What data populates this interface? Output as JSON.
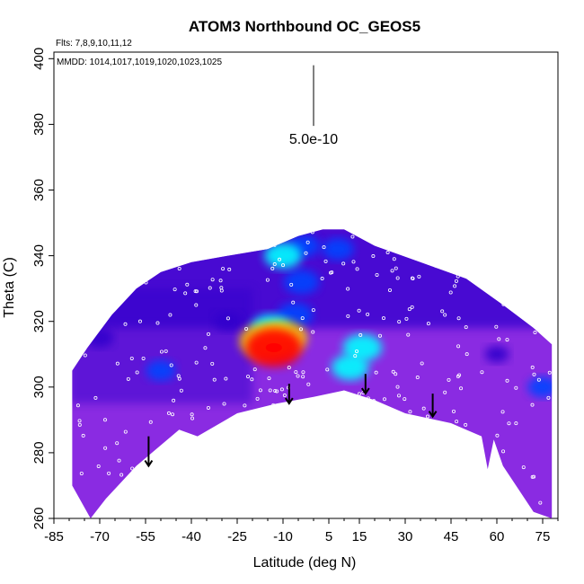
{
  "chart_data": {
    "type": "heatmap",
    "title": "ATOM3 Northbound OC_GEOS5",
    "flights_text": "Flts: 7,8,9,10,11,12",
    "dates_text": "MMDD: 1014,1017,1019,1020,1023,1025",
    "xlabel": "Latitude (deg N)",
    "ylabel": "Theta (C)",
    "xlim": [
      -85,
      80
    ],
    "ylim": [
      260,
      402
    ],
    "xtick_labels": [
      "-85",
      "-70",
      "-55",
      "-40",
      "-25",
      "-10",
      "5",
      "15",
      "30",
      "45",
      "60",
      "75"
    ],
    "xtick_values": [
      -85,
      -70,
      -55,
      -40,
      -25,
      -10,
      5,
      15,
      30,
      45,
      60,
      75
    ],
    "ytick_labels": [
      "260",
      "280",
      "300",
      "320",
      "340",
      "360",
      "380",
      "400"
    ],
    "ytick_values": [
      260,
      280,
      300,
      320,
      340,
      360,
      380,
      400
    ],
    "scale_bar_label": "5.0e-10",
    "scale_bar_x": 0,
    "scale_bar_range": [
      385,
      398
    ],
    "colors": {
      "low": "#8a2be2",
      "mid_low": "#3300cc",
      "mid": "#0044ff",
      "high": "#00ffff",
      "peak": "#ff0000",
      "peak_yellow": "#ffcc00",
      "points": "#ffffff",
      "arrows": "#000000"
    },
    "upper_boundary": [
      {
        "lat": -74,
        "theta": 312
      },
      {
        "lat": -66,
        "theta": 322
      },
      {
        "lat": -58,
        "theta": 330
      },
      {
        "lat": -50,
        "theta": 335
      },
      {
        "lat": -40,
        "theta": 338
      },
      {
        "lat": -28,
        "theta": 340
      },
      {
        "lat": -15,
        "theta": 342
      },
      {
        "lat": -5,
        "theta": 346
      },
      {
        "lat": 3,
        "theta": 348
      },
      {
        "lat": 10,
        "theta": 348
      },
      {
        "lat": 20,
        "theta": 343
      },
      {
        "lat": 35,
        "theta": 338
      },
      {
        "lat": 50,
        "theta": 333
      },
      {
        "lat": 62,
        "theta": 325
      },
      {
        "lat": 72,
        "theta": 318
      },
      {
        "lat": 78,
        "theta": 313
      }
    ],
    "lower_boundary": [
      {
        "lat": 78,
        "theta": 260
      },
      {
        "lat": 72,
        "theta": 262
      },
      {
        "lat": 62,
        "theta": 276
      },
      {
        "lat": 59,
        "theta": 284
      },
      {
        "lat": 57,
        "theta": 275
      },
      {
        "lat": 55,
        "theta": 285
      },
      {
        "lat": 45,
        "theta": 289
      },
      {
        "lat": 30,
        "theta": 292
      },
      {
        "lat": 20,
        "theta": 296
      },
      {
        "lat": 10,
        "theta": 299
      },
      {
        "lat": 0,
        "theta": 297
      },
      {
        "lat": -12,
        "theta": 295
      },
      {
        "lat": -25,
        "theta": 292
      },
      {
        "lat": -38,
        "theta": 285
      },
      {
        "lat": -44,
        "theta": 287
      },
      {
        "lat": -58,
        "theta": 276
      },
      {
        "lat": -68,
        "theta": 266
      },
      {
        "lat": -73,
        "theta": 260
      },
      {
        "lat": -79,
        "theta": 270
      },
      {
        "lat": -79,
        "theta": 305
      }
    ],
    "hotspots": [
      {
        "lat": -13,
        "theta": 312,
        "level": 1.0
      },
      {
        "lat": -16,
        "theta": 314,
        "level": 0.85
      },
      {
        "lat": -10,
        "theta": 315,
        "level": 0.8
      },
      {
        "lat": -14,
        "theta": 318,
        "level": 0.55
      },
      {
        "lat": -6,
        "theta": 322,
        "level": 0.45
      },
      {
        "lat": -4,
        "theta": 332,
        "level": 0.45
      },
      {
        "lat": 16,
        "theta": 312,
        "level": 0.55
      },
      {
        "lat": 12,
        "theta": 306,
        "level": 0.5
      },
      {
        "lat": -10,
        "theta": 340,
        "level": 0.5
      },
      {
        "lat": -3,
        "theta": 343,
        "level": 0.35
      },
      {
        "lat": 8,
        "theta": 342,
        "level": 0.35
      },
      {
        "lat": -50,
        "theta": 305,
        "level": 0.3
      },
      {
        "lat": -70,
        "theta": 315,
        "level": 0.25
      },
      {
        "lat": -28,
        "theta": 320,
        "level": 0.25
      },
      {
        "lat": 60,
        "theta": 310,
        "level": 0.15
      },
      {
        "lat": 75,
        "theta": 300,
        "level": 0.3
      }
    ],
    "arrows": [
      {
        "lat": -54,
        "theta_top": 285,
        "theta_tip": 276
      },
      {
        "lat": -8,
        "theta_top": 301,
        "theta_tip": 295
      },
      {
        "lat": 17,
        "theta_top": 304,
        "theta_tip": 298
      },
      {
        "lat": 39,
        "theta_top": 298,
        "theta_tip": 291
      }
    ]
  }
}
